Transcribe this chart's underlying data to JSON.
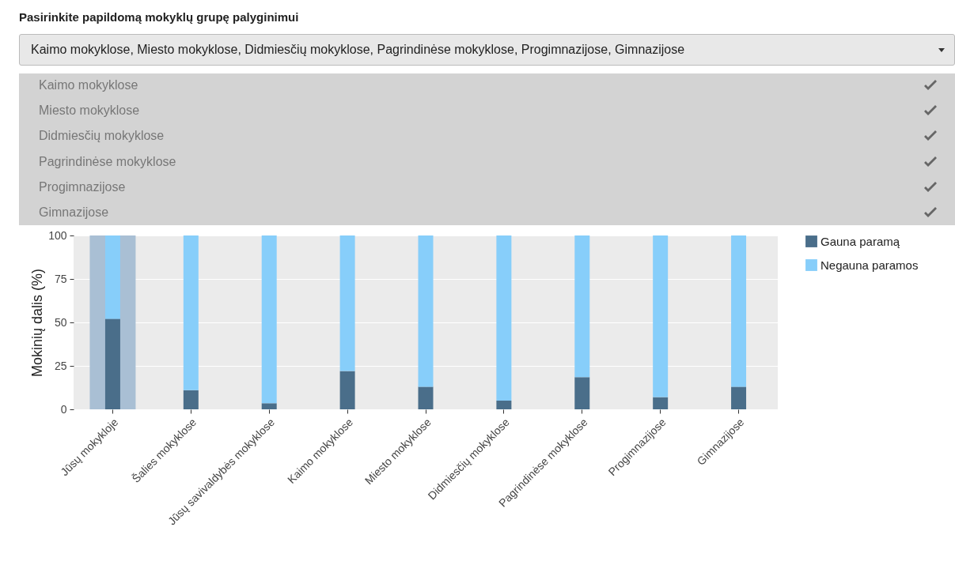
{
  "chart_data": {
    "type": "bar",
    "title": "Pasirinkite papildomą mokyklų grupę palyginimui",
    "subtitle": "Kaimo mokyklose, Miesto mokyklose, Didmiesčių mokyklose, Pagrindinėse mokyklose, Progimnazijose, Gimnazijose",
    "annotations": [
      "Kaimo mokyklose",
      "Miesto mokyklose",
      "Didmiesčių mokyklose",
      "Pagrindinėse mokyklose",
      "Progimnazijose",
      "Gimnazijose"
    ],
    "ylabel": "Mokinių dalis (%)",
    "categories": [
      "Jūsų mokykloje",
      "Šalies mokyklose",
      "Jūsų savivaldybės mokyklose",
      "Kaimo mokyklose",
      "Miesto mokyklose",
      "Didmiesčių mokyklose",
      "Pagrindinėse mokyklose",
      "Progimnazijose",
      "Gimnazijose"
    ],
    "series": [
      {
        "name": "Gauna paramą",
        "color": "#4a6e8a",
        "values": [
          52,
          11,
          3.5,
          22,
          13,
          5,
          18.5,
          7,
          13
        ]
      },
      {
        "name": "Negauna paramos",
        "color": "#87cefa",
        "values": [
          48,
          89,
          96.5,
          78,
          87,
          95,
          81.5,
          93,
          87
        ]
      }
    ],
    "stacked": true,
    "bands": [
      {
        "axis": "x",
        "from": "Jūsų mokykloje",
        "to": "Jūsų mokykloje",
        "color": "#a9bfd4"
      }
    ],
    "ylim": [
      0,
      100
    ],
    "yticks": [
      0,
      25,
      50,
      75,
      100
    ],
    "grid": true,
    "legend": "right"
  }
}
